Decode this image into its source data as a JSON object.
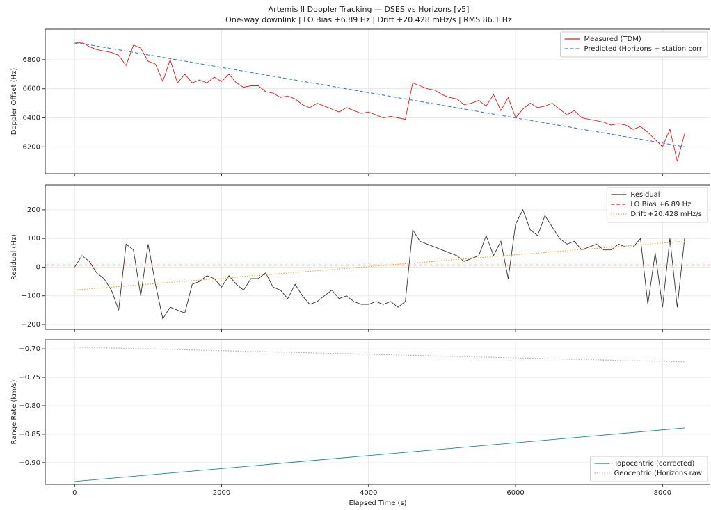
{
  "title": "Artemis II Doppler Tracking — DSES vs Horizons  [v5]",
  "subtitle": "One-way downlink  |  LO Bias +6.89 Hz  |  Drift +20.428 mHz/s  |  RMS 86.1 Hz",
  "chart_data": [
    {
      "type": "line",
      "ylabel": "Doppler Offset (Hz)",
      "xlim": [
        -400,
        8650
      ],
      "ylim": [
        6015,
        7010
      ],
      "xticks": [
        0,
        2000,
        4000,
        6000,
        8000
      ],
      "xtick_labels": false,
      "yticks": [
        6200,
        6400,
        6600,
        6800
      ],
      "grid": true,
      "legend": "upper right",
      "series": [
        {
          "name": "Measured (TDM)",
          "color": "#e8191a",
          "style": "solid",
          "x": [
            0,
            100,
            200,
            300,
            400,
            500,
            600,
            700,
            800,
            900,
            1000,
            1100,
            1200,
            1300,
            1400,
            1500,
            1600,
            1700,
            1800,
            1900,
            2000,
            2100,
            2200,
            2300,
            2400,
            2500,
            2600,
            2700,
            2800,
            2900,
            3000,
            3100,
            3200,
            3300,
            3400,
            3500,
            3600,
            3700,
            3800,
            3900,
            4000,
            4100,
            4200,
            4300,
            4400,
            4500,
            4600,
            4700,
            4800,
            4900,
            5000,
            5100,
            5200,
            5300,
            5400,
            5500,
            5600,
            5700,
            5800,
            5900,
            6000,
            6100,
            6200,
            6300,
            6400,
            6500,
            6600,
            6700,
            6800,
            6900,
            7000,
            7100,
            7200,
            7300,
            7400,
            7500,
            7600,
            7700,
            7800,
            7900,
            8000,
            8100,
            8200,
            8300
          ],
          "values": [
            6910,
            6920,
            6890,
            6870,
            6860,
            6850,
            6830,
            6760,
            6900,
            6880,
            6790,
            6770,
            6650,
            6800,
            6640,
            6700,
            6640,
            6660,
            6640,
            6680,
            6650,
            6700,
            6640,
            6610,
            6620,
            6620,
            6580,
            6570,
            6540,
            6550,
            6530,
            6490,
            6470,
            6500,
            6480,
            6460,
            6440,
            6470,
            6450,
            6430,
            6440,
            6420,
            6400,
            6410,
            6400,
            6390,
            6640,
            6620,
            6600,
            6590,
            6560,
            6540,
            6530,
            6490,
            6500,
            6520,
            6480,
            6560,
            6450,
            6540,
            6400,
            6460,
            6500,
            6470,
            6480,
            6500,
            6460,
            6420,
            6450,
            6400,
            6390,
            6380,
            6370,
            6350,
            6360,
            6350,
            6320,
            6340,
            6300,
            6250,
            6200,
            6320,
            6100,
            6290
          ]
        },
        {
          "name": "Predicted (Horizons + station corr",
          "color": "#3a7fbf",
          "style": "dashed",
          "x": [
            0,
            8300
          ],
          "values": [
            6920,
            6200
          ]
        }
      ]
    },
    {
      "type": "line",
      "ylabel": "Residual (Hz)",
      "xlim": [
        -400,
        8650
      ],
      "ylim": [
        -217,
        287
      ],
      "xticks": [
        0,
        2000,
        4000,
        6000,
        8000
      ],
      "xtick_labels": false,
      "yticks": [
        {
          "value": -200,
          "label": "−200"
        },
        {
          "value": -100,
          "label": "−100"
        },
        0,
        100,
        200
      ],
      "grid": true,
      "legend": "upper right",
      "series": [
        {
          "name": "Residual",
          "color": "#333333",
          "style": "solid",
          "x": [
            0,
            100,
            200,
            300,
            400,
            500,
            600,
            700,
            800,
            900,
            1000,
            1100,
            1200,
            1300,
            1400,
            1500,
            1600,
            1700,
            1800,
            1900,
            2000,
            2100,
            2200,
            2300,
            2400,
            2500,
            2600,
            2700,
            2800,
            2900,
            3000,
            3100,
            3200,
            3300,
            3400,
            3500,
            3600,
            3700,
            3800,
            3900,
            4000,
            4100,
            4200,
            4300,
            4400,
            4500,
            4600,
            4700,
            4800,
            4900,
            5000,
            5100,
            5200,
            5300,
            5400,
            5500,
            5600,
            5700,
            5800,
            5900,
            6000,
            6100,
            6200,
            6300,
            6400,
            6500,
            6600,
            6700,
            6800,
            6900,
            7000,
            7100,
            7200,
            7300,
            7400,
            7500,
            7600,
            7700,
            7800,
            7900,
            8000,
            8100,
            8200,
            8300
          ],
          "values": [
            0,
            40,
            20,
            -20,
            -40,
            -80,
            -150,
            80,
            60,
            -100,
            80,
            -60,
            -180,
            -140,
            -150,
            -160,
            -60,
            -50,
            -30,
            -40,
            -70,
            -30,
            -60,
            -80,
            -40,
            -40,
            -20,
            -70,
            -80,
            -110,
            -60,
            -100,
            -130,
            -120,
            -100,
            -80,
            -110,
            -100,
            -120,
            -130,
            -130,
            -120,
            -130,
            -120,
            -140,
            -120,
            130,
            90,
            80,
            70,
            60,
            50,
            40,
            20,
            30,
            40,
            110,
            40,
            90,
            -40,
            150,
            200,
            130,
            110,
            180,
            140,
            100,
            80,
            90,
            60,
            70,
            80,
            60,
            60,
            80,
            70,
            70,
            100,
            -130,
            50,
            -140,
            100,
            -140,
            100
          ]
        },
        {
          "name": "LO Bias  +6.89 Hz",
          "color": "#e8191a",
          "style": "dashed",
          "kind": "hline",
          "values": [
            6.89
          ]
        },
        {
          "name": "Drift  +20.428 mHz/s",
          "color": "#f0a020",
          "style": "dotted",
          "x": [
            0,
            8300
          ],
          "values": [
            -80,
            90
          ]
        }
      ]
    },
    {
      "type": "line",
      "ylabel": "Range Rate (km/s)",
      "xlabel": "Elapsed Time (s)",
      "xlim": [
        -400,
        8650
      ],
      "ylim": [
        -0.938,
        -0.684
      ],
      "xticks": [
        0,
        2000,
        4000,
        6000,
        8000
      ],
      "xtick_labels": true,
      "yticks": [
        {
          "value": -0.9,
          "label": "−0.90"
        },
        {
          "value": -0.85,
          "label": "−0.85"
        },
        {
          "value": -0.8,
          "label": "−0.80"
        },
        {
          "value": -0.75,
          "label": "−0.75"
        },
        {
          "value": -0.7,
          "label": "−0.70"
        }
      ],
      "grid": true,
      "legend": "lower right",
      "series": [
        {
          "name": "Topocentric (corrected)",
          "color": "#1a8a8a",
          "style": "solid",
          "x": [
            0,
            8300
          ],
          "values": [
            -0.933,
            -0.839
          ]
        },
        {
          "name": "Geocentric (Horizons raw",
          "color": "#aaaaaa",
          "style": "dotted",
          "x": [
            0,
            8300
          ],
          "values": [
            -0.697,
            -0.723
          ]
        }
      ]
    }
  ]
}
